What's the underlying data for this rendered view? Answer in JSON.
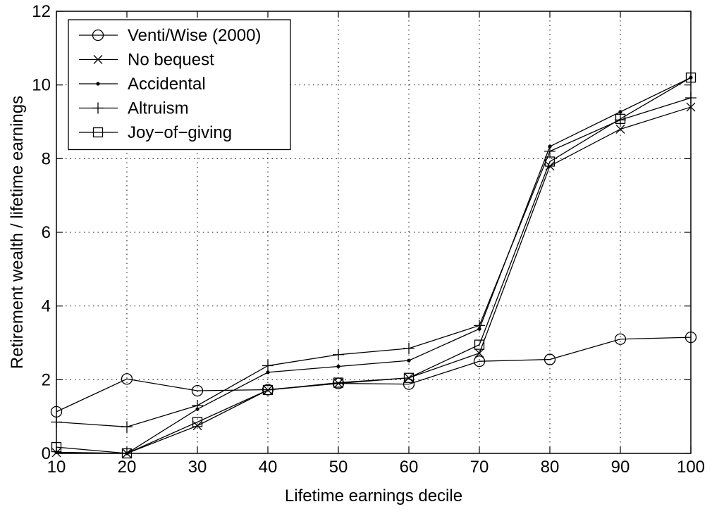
{
  "chart_data": {
    "type": "line",
    "title": "",
    "xlabel": "Lifetime earnings decile",
    "ylabel": "Retirement wealth / lifetime earnings",
    "xlim": [
      10,
      100
    ],
    "ylim": [
      0,
      12
    ],
    "xticks": [
      10,
      20,
      30,
      40,
      50,
      60,
      70,
      80,
      90,
      100
    ],
    "yticks": [
      0,
      2,
      4,
      6,
      8,
      10,
      12
    ],
    "x": [
      10,
      20,
      30,
      40,
      50,
      60,
      70,
      80,
      90,
      100
    ],
    "grid": true,
    "grid_style": "dotted",
    "legend_position": "top-left",
    "series": [
      {
        "name": "Venti/Wise (2000)",
        "marker": "circle",
        "values": [
          1.13,
          2.02,
          1.7,
          1.73,
          1.9,
          1.88,
          2.5,
          2.55,
          3.1,
          3.15
        ]
      },
      {
        "name": "No bequest",
        "marker": "x",
        "values": [
          0.02,
          0.0,
          0.75,
          1.72,
          1.9,
          2.05,
          2.72,
          7.8,
          8.8,
          9.4
        ]
      },
      {
        "name": "Accidental",
        "marker": "dot",
        "values": [
          0.03,
          0.0,
          1.2,
          2.2,
          2.36,
          2.52,
          3.38,
          8.33,
          9.27,
          10.2
        ]
      },
      {
        "name": "Altruism",
        "marker": "plus",
        "values": [
          0.85,
          0.72,
          1.3,
          2.38,
          2.68,
          2.85,
          3.47,
          8.2,
          9.05,
          9.65
        ]
      },
      {
        "name": "Joy−of−giving",
        "marker": "square",
        "values": [
          0.17,
          0.0,
          0.85,
          1.72,
          1.92,
          2.05,
          2.95,
          7.92,
          9.08,
          10.2
        ]
      }
    ]
  }
}
